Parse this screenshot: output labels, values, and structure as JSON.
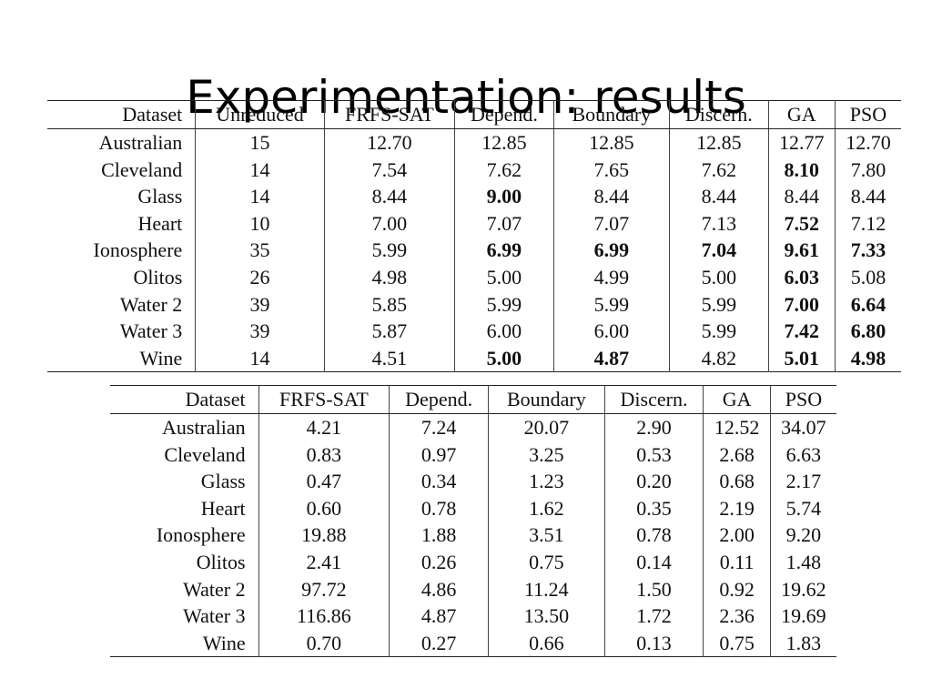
{
  "slide": {
    "title": "Experimentation: results"
  },
  "table_features": {
    "columns": [
      "Dataset",
      "Unreduced",
      "FRFS-SAT",
      "Depend.",
      "Boundary",
      "Discern.",
      "GA",
      "PSO"
    ],
    "rows": [
      {
        "cells": [
          "Australian",
          "15",
          "12.70",
          "12.85",
          "12.85",
          "12.85",
          "12.77",
          "12.70"
        ],
        "bold": []
      },
      {
        "cells": [
          "Cleveland",
          "14",
          "7.54",
          "7.62",
          "7.65",
          "7.62",
          "8.10",
          "7.80"
        ],
        "bold": [
          6
        ]
      },
      {
        "cells": [
          "Glass",
          "14",
          "8.44",
          "9.00",
          "8.44",
          "8.44",
          "8.44",
          "8.44"
        ],
        "bold": [
          3
        ]
      },
      {
        "cells": [
          "Heart",
          "10",
          "7.00",
          "7.07",
          "7.07",
          "7.13",
          "7.52",
          "7.12"
        ],
        "bold": [
          6
        ]
      },
      {
        "cells": [
          "Ionosphere",
          "35",
          "5.99",
          "6.99",
          "6.99",
          "7.04",
          "9.61",
          "7.33"
        ],
        "bold": [
          3,
          4,
          5,
          6,
          7
        ]
      },
      {
        "cells": [
          "Olitos",
          "26",
          "4.98",
          "5.00",
          "4.99",
          "5.00",
          "6.03",
          "5.08"
        ],
        "bold": [
          6
        ]
      },
      {
        "cells": [
          "Water 2",
          "39",
          "5.85",
          "5.99",
          "5.99",
          "5.99",
          "7.00",
          "6.64"
        ],
        "bold": [
          6,
          7
        ]
      },
      {
        "cells": [
          "Water 3",
          "39",
          "5.87",
          "6.00",
          "6.00",
          "5.99",
          "7.42",
          "6.80"
        ],
        "bold": [
          6,
          7
        ]
      },
      {
        "cells": [
          "Wine",
          "14",
          "4.51",
          "5.00",
          "4.87",
          "4.82",
          "5.01",
          "4.98"
        ],
        "bold": [
          3,
          4,
          6,
          7
        ]
      }
    ]
  },
  "table_runtime": {
    "columns": [
      "Dataset",
      "FRFS-SAT",
      "Depend.",
      "Boundary",
      "Discern.",
      "GA",
      "PSO"
    ],
    "rows": [
      {
        "cells": [
          "Australian",
          "4.21",
          "7.24",
          "20.07",
          "2.90",
          "12.52",
          "34.07"
        ],
        "bold": []
      },
      {
        "cells": [
          "Cleveland",
          "0.83",
          "0.97",
          "3.25",
          "0.53",
          "2.68",
          "6.63"
        ],
        "bold": []
      },
      {
        "cells": [
          "Glass",
          "0.47",
          "0.34",
          "1.23",
          "0.20",
          "0.68",
          "2.17"
        ],
        "bold": []
      },
      {
        "cells": [
          "Heart",
          "0.60",
          "0.78",
          "1.62",
          "0.35",
          "2.19",
          "5.74"
        ],
        "bold": []
      },
      {
        "cells": [
          "Ionosphere",
          "19.88",
          "1.88",
          "3.51",
          "0.78",
          "2.00",
          "9.20"
        ],
        "bold": []
      },
      {
        "cells": [
          "Olitos",
          "2.41",
          "0.26",
          "0.75",
          "0.14",
          "0.11",
          "1.48"
        ],
        "bold": []
      },
      {
        "cells": [
          "Water 2",
          "97.72",
          "4.86",
          "11.24",
          "1.50",
          "0.92",
          "19.62"
        ],
        "bold": []
      },
      {
        "cells": [
          "Water 3",
          "116.86",
          "4.87",
          "13.50",
          "1.72",
          "2.36",
          "19.69"
        ],
        "bold": []
      },
      {
        "cells": [
          "Wine",
          "0.70",
          "0.27",
          "0.66",
          "0.13",
          "0.75",
          "1.83"
        ],
        "bold": []
      }
    ]
  }
}
